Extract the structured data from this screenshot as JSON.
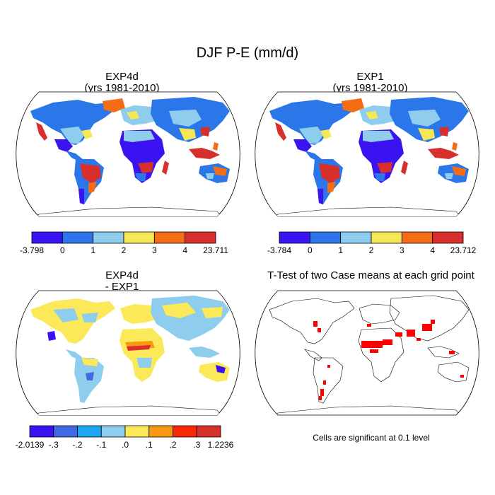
{
  "figure": {
    "title": "DJF P-E (mm/d)"
  },
  "panels": [
    {
      "title": "EXP4d",
      "subtitle": "(yrs 1981-2010)"
    },
    {
      "title": "EXP1",
      "subtitle": "(yrs 1981-2010)"
    },
    {
      "title": "EXP4d",
      "subtitle": "- EXP1"
    },
    {
      "title": "T-Test of two Case means at each grid point",
      "note": "Cells are significant at 0.1 level"
    }
  ],
  "colorbars": [
    {
      "labels": [
        "-3.798",
        "0",
        "1",
        "2",
        "3",
        "4",
        "23.711"
      ],
      "colors": [
        "#3b12f0",
        "#2b77ea",
        "#8ecdee",
        "#f6e756",
        "#f46c14",
        "#d72f2c"
      ]
    },
    {
      "labels": [
        "-3.784",
        "0",
        "1",
        "2",
        "3",
        "4",
        "23.712"
      ],
      "colors": [
        "#3b12f0",
        "#2b77ea",
        "#8ecdee",
        "#f6e756",
        "#f46c14",
        "#d72f2c"
      ]
    },
    {
      "labels": [
        "-2.0139",
        "-.3",
        "-.2",
        "-.1",
        ".0",
        ".1",
        ".2",
        ".3",
        "1.2236"
      ],
      "colors": [
        "#3b12f0",
        "#4169e1",
        "#1ea7f0",
        "#8ecdee",
        "#fbe95a",
        "#f79a12",
        "#f62a06",
        "#d72f2c"
      ]
    }
  ],
  "significance_color": "#ff0000"
}
